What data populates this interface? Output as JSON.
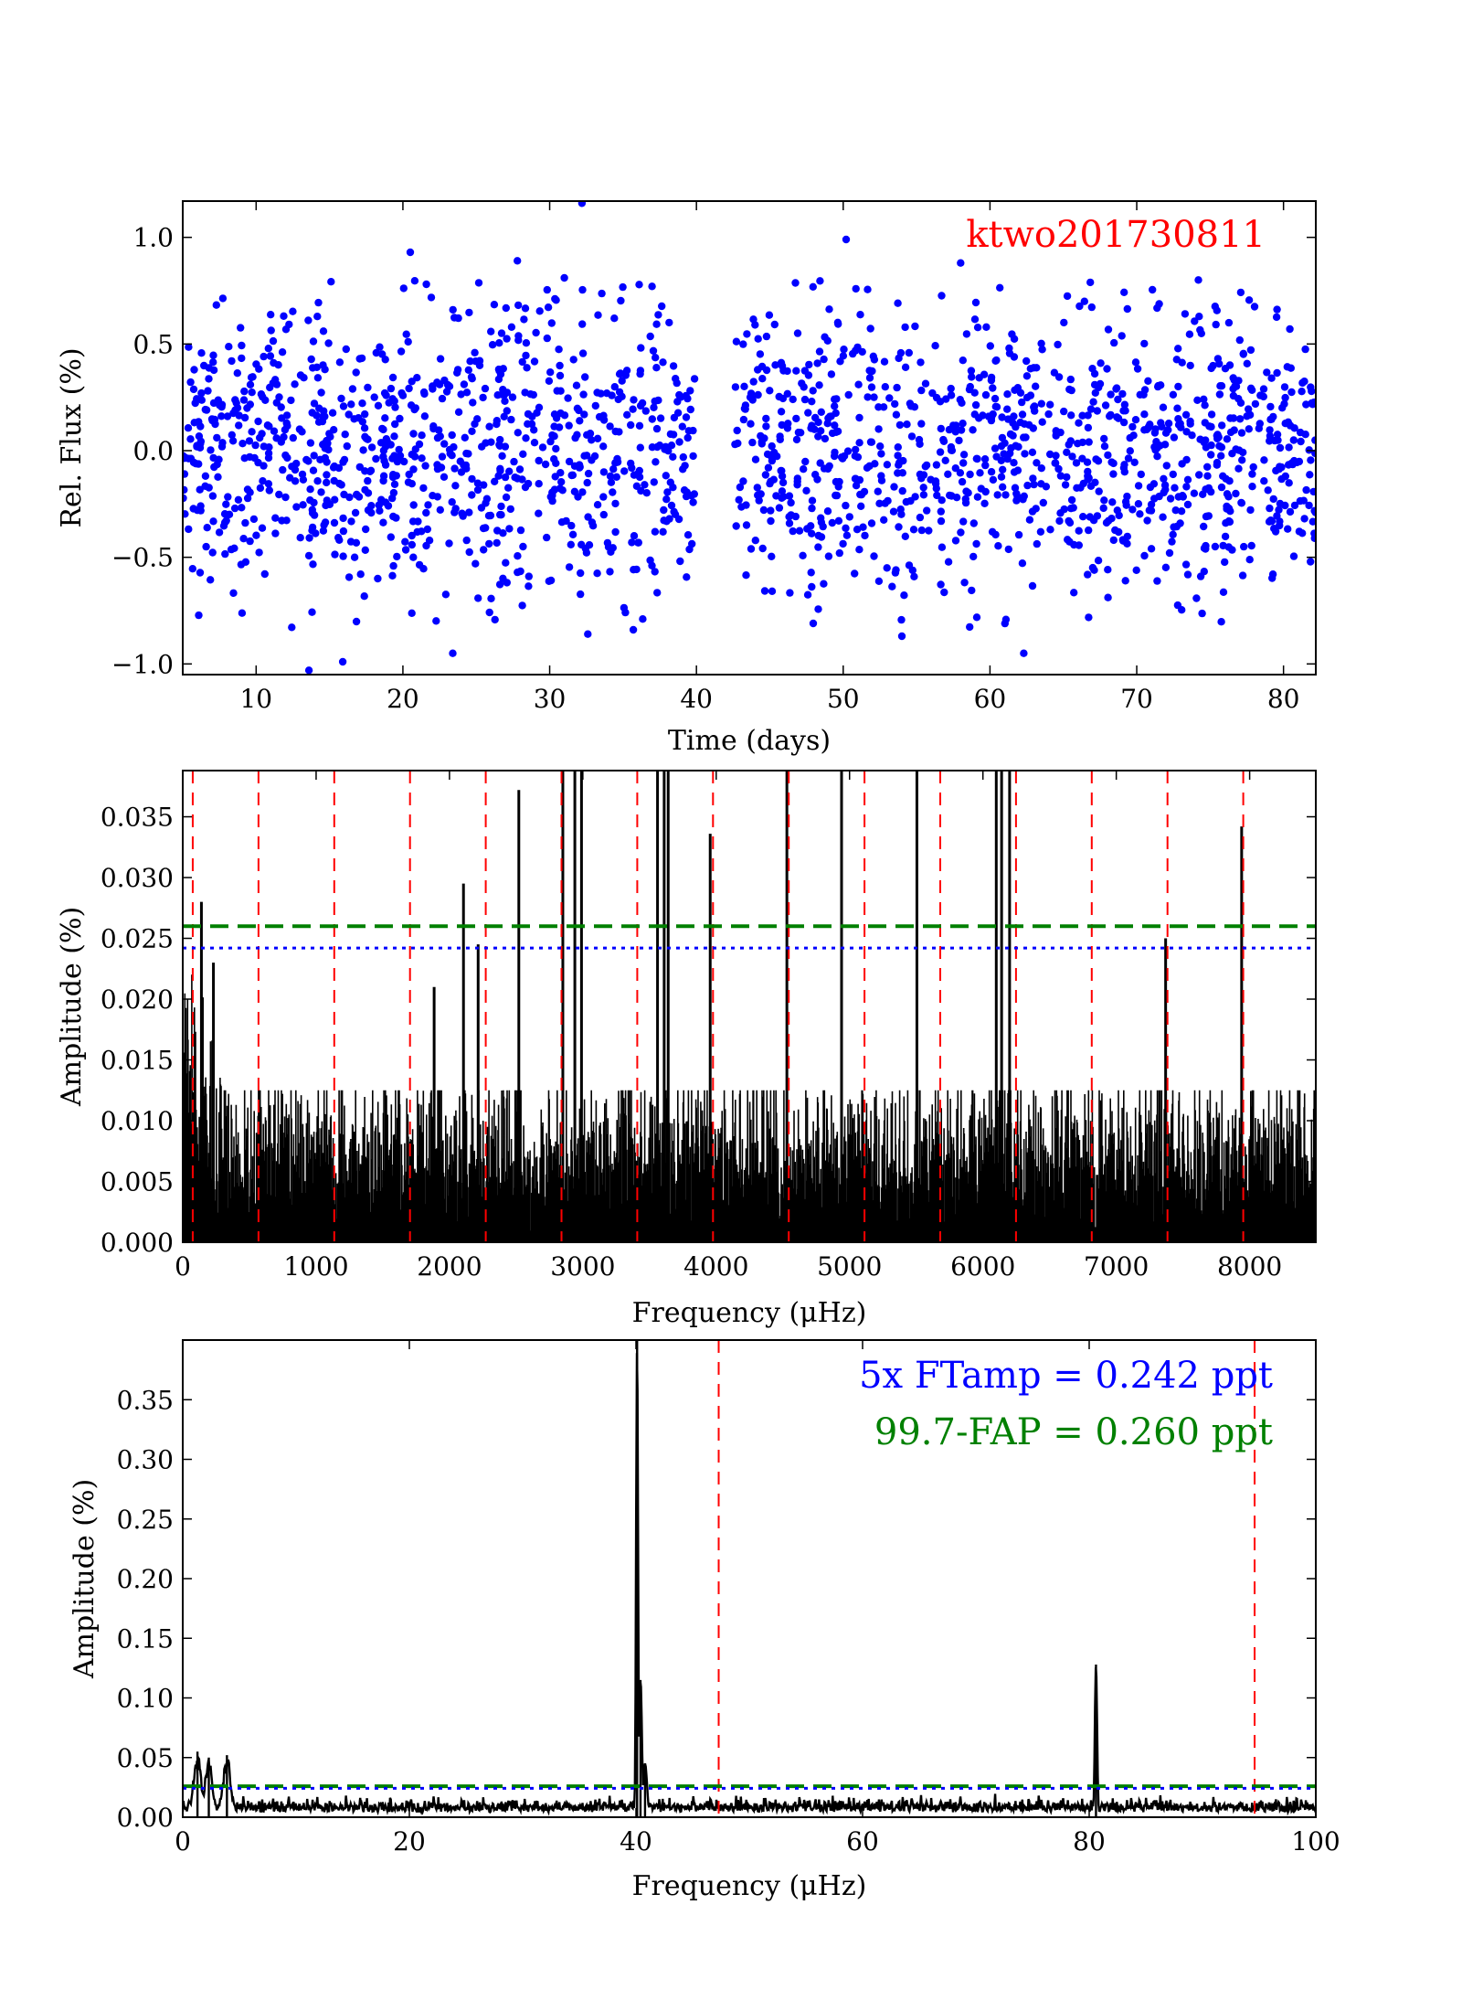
{
  "colors": {
    "points": "#0000ff",
    "spectrum": "#000000",
    "harmonic_lines": "#ff0000",
    "fap_line": "#008000",
    "ftamp_line": "#0000ff",
    "object_label": "#ff0000",
    "ftamp_label": "#0000ff",
    "fap_label": "#008000"
  },
  "chart_data": [
    {
      "id": "light-curve",
      "type": "scatter",
      "title": "ktwo201730811",
      "xlabel": "Time (days)",
      "ylabel": "Rel. Flux (%)",
      "xlim": [
        5.0,
        82.2
      ],
      "ylim": [
        -1.05,
        1.17
      ],
      "xticks": [
        10,
        20,
        30,
        40,
        50,
        60,
        70,
        80
      ],
      "xtick_labels": [
        "10",
        "20",
        "30",
        "40",
        "50",
        "60",
        "70",
        "80"
      ],
      "yticks": [
        -1.0,
        -0.5,
        0.0,
        0.5,
        1.0
      ],
      "ytick_labels": [
        "−1.0",
        "−0.5",
        "0.0",
        "0.5",
        "1.0"
      ],
      "sampling": {
        "segments": [
          [
            5.0,
            40.0
          ],
          [
            42.6,
            82.2
          ]
        ],
        "cadence_days": 0.0204,
        "scatter_rms": 0.33,
        "drawn_points": 1900
      },
      "notable_points": [
        {
          "x": 20.5,
          "y": 0.93
        },
        {
          "x": 21.6,
          "y": 0.78
        },
        {
          "x": 27.8,
          "y": 0.89
        },
        {
          "x": 31.0,
          "y": 0.81
        },
        {
          "x": 32.2,
          "y": 1.16
        },
        {
          "x": 50.2,
          "y": 0.99
        },
        {
          "x": 58.0,
          "y": 0.88
        },
        {
          "x": 74.2,
          "y": 0.8
        },
        {
          "x": 13.6,
          "y": -1.03
        },
        {
          "x": 15.9,
          "y": -0.99
        },
        {
          "x": 23.4,
          "y": -0.95
        },
        {
          "x": 62.3,
          "y": -0.95
        },
        {
          "x": 32.6,
          "y": -0.86
        },
        {
          "x": 35.7,
          "y": -0.84
        },
        {
          "x": 54.0,
          "y": -0.87
        }
      ]
    },
    {
      "id": "full-spectrum",
      "type": "line",
      "xlabel": "Frequency (μHz)",
      "ylabel": "Amplitude (%)",
      "xlim": [
        0,
        8496
      ],
      "ylim": [
        0.0,
        0.0388
      ],
      "xticks": [
        0,
        1000,
        2000,
        3000,
        4000,
        5000,
        6000,
        7000,
        8000
      ],
      "xtick_labels": [
        "0",
        "1000",
        "2000",
        "3000",
        "4000",
        "5000",
        "6000",
        "7000",
        "8000"
      ],
      "yticks": [
        0.0,
        0.005,
        0.01,
        0.015,
        0.02,
        0.025,
        0.03,
        0.035
      ],
      "ytick_labels": [
        "0.000",
        "0.005",
        "0.010",
        "0.015",
        "0.020",
        "0.025",
        "0.030",
        "0.035"
      ],
      "noise": {
        "lowfreq_max": 0.028,
        "lowfreq_cutoff": 300,
        "typical_max": 0.0125
      },
      "peaks": [
        {
          "x": 1885,
          "y": 0.021
        },
        {
          "x": 2105,
          "y": 0.0295
        },
        {
          "x": 2215,
          "y": 0.0245
        },
        {
          "x": 2520,
          "y": 0.0372
        },
        {
          "x": 2850,
          "y": 0.04
        },
        {
          "x": 2940,
          "y": 0.04
        },
        {
          "x": 2990,
          "y": 0.04
        },
        {
          "x": 3560,
          "y": 0.04
        },
        {
          "x": 3610,
          "y": 0.04
        },
        {
          "x": 3640,
          "y": 0.04
        },
        {
          "x": 3955,
          "y": 0.0336
        },
        {
          "x": 4530,
          "y": 0.04
        },
        {
          "x": 4940,
          "y": 0.04
        },
        {
          "x": 5505,
          "y": 0.04
        },
        {
          "x": 6100,
          "y": 0.04
        },
        {
          "x": 6140,
          "y": 0.04
        },
        {
          "x": 6200,
          "y": 0.04
        },
        {
          "x": 7370,
          "y": 0.025
        },
        {
          "x": 7940,
          "y": 0.0342
        },
        {
          "x": 140,
          "y": 0.028
        },
        {
          "x": 230,
          "y": 0.023
        }
      ],
      "harmonic_lines": [
        75,
        568,
        1136,
        1704,
        2272,
        2840,
        3408,
        3976,
        4544,
        5112,
        5680,
        6248,
        6816,
        7384,
        7952
      ],
      "fap_level": 0.026,
      "ftamp_level": 0.0242
    },
    {
      "id": "zoom-spectrum",
      "type": "line",
      "xlabel": "Frequency (μHz)",
      "ylabel": "Amplitude (%)",
      "xlim": [
        0,
        100
      ],
      "ylim": [
        0.0,
        0.4
      ],
      "xticks": [
        0,
        20,
        40,
        60,
        80,
        100
      ],
      "xtick_labels": [
        "0",
        "20",
        "40",
        "60",
        "80",
        "100"
      ],
      "yticks": [
        0.0,
        0.05,
        0.1,
        0.15,
        0.2,
        0.25,
        0.3,
        0.35
      ],
      "ytick_labels": [
        "0.00",
        "0.05",
        "0.10",
        "0.15",
        "0.20",
        "0.25",
        "0.30",
        "0.35"
      ],
      "noise_level": 0.012,
      "peaks": [
        {
          "x": 1.3,
          "y": 0.055,
          "w": 0.5
        },
        {
          "x": 2.3,
          "y": 0.05,
          "w": 0.5
        },
        {
          "x": 3.9,
          "y": 0.052,
          "w": 0.5
        },
        {
          "x": 40.1,
          "y": 0.4,
          "w": 0.12
        },
        {
          "x": 40.4,
          "y": 0.115,
          "w": 0.18
        },
        {
          "x": 40.8,
          "y": 0.045,
          "w": 0.25
        },
        {
          "x": 80.6,
          "y": 0.128,
          "w": 0.14
        }
      ],
      "harmonic_lines": [
        47.3,
        94.6
      ],
      "fap_level": 0.026,
      "ftamp_level": 0.0242,
      "annotations": [
        "5x FTamp = 0.242 ppt",
        "99.7-FAP = 0.260 ppt"
      ]
    }
  ]
}
